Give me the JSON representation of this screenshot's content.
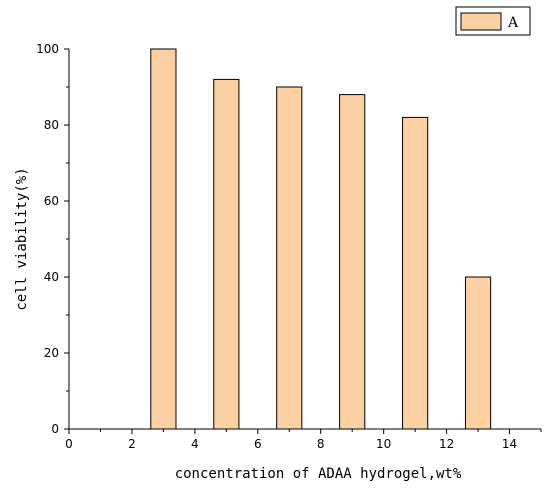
{
  "chart_data": {
    "type": "bar",
    "x": [
      3,
      5,
      7,
      9,
      11,
      13
    ],
    "values": [
      100,
      92,
      90,
      88,
      82,
      40
    ],
    "series": [
      {
        "name": "A",
        "color": "#fbd0a3"
      }
    ],
    "xlabel": "concentration of ADAA hydrogel,wt%",
    "ylabel": "cell viability(%)",
    "xlim": [
      0,
      15
    ],
    "ylim": [
      0,
      100
    ],
    "xticks": [
      0,
      2,
      4,
      6,
      8,
      10,
      12,
      14
    ],
    "yticks": [
      0,
      20,
      40,
      60,
      80,
      100
    ],
    "bar_width": 0.8,
    "grid": false,
    "legend": "top-right",
    "axes_color": "#000000"
  }
}
